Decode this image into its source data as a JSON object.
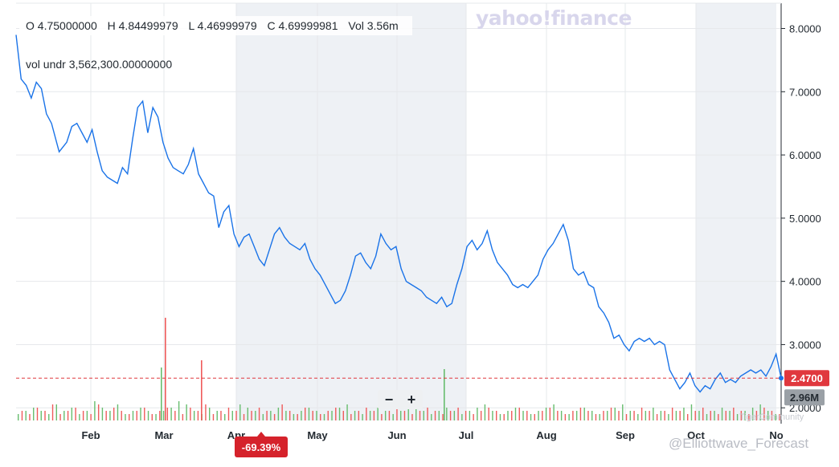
{
  "ohlc": {
    "open": "O 4.75000000",
    "high": "H 4.84499979",
    "low": "L 4.46999979",
    "close": "C 4.69999981",
    "volume": "Vol 3.56m"
  },
  "vol_undr_label": "vol undr  3,562,300.00000000",
  "brand": "yahoo!finance",
  "zoom": {
    "minus": "−",
    "plus": "+"
  },
  "watermarks": {
    "community": "TigerCommunity",
    "handle": "@Elliottwave_Forecast"
  },
  "colors": {
    "line": "#1a73e8",
    "last_price_badge": "#e0383e",
    "volume_badge": "#9aa0a6",
    "change_badge": "#d5222b",
    "volume_up": "#67bd6e",
    "volume_down": "#ef5b5b",
    "shaded_band": "#eef1f5"
  },
  "chart_data": {
    "type": "line",
    "title": "",
    "xlabel": "",
    "ylabel": "",
    "x_tick_labels": [
      "Feb",
      "Mar",
      "Apr",
      "May",
      "Jun",
      "Jul",
      "Aug",
      "Sep",
      "Oct",
      "No"
    ],
    "y_tick_labels": [
      "8.0000",
      "7.0000",
      "6.0000",
      "5.0000",
      "4.0000",
      "3.0000",
      "2.0000"
    ],
    "ylim": [
      1.8,
      8.4
    ],
    "shaded_months": [
      "Apr",
      "May",
      "Jun",
      "Oct"
    ],
    "last_price": "2.4700",
    "last_price_value": 2.47,
    "volume_label": "2.96M",
    "change_label": "-69.39%",
    "grid": true,
    "series": [
      {
        "x": [
          0,
          2,
          4,
          6,
          8,
          10,
          12,
          14,
          17,
          20,
          22,
          24,
          26,
          28,
          30,
          32,
          34,
          36,
          38,
          40,
          42,
          44,
          46,
          48,
          50,
          52,
          54,
          56,
          58,
          60,
          62,
          64,
          66,
          68,
          70,
          72,
          74,
          76,
          78,
          80,
          82,
          84,
          86,
          88,
          90,
          92,
          94,
          96,
          98,
          100,
          102,
          104,
          106,
          108,
          110,
          112,
          114,
          116,
          118,
          120,
          122,
          124,
          126,
          128,
          130,
          132,
          134,
          136,
          138,
          140,
          142,
          144,
          146,
          148,
          150,
          152,
          154,
          156,
          158,
          160,
          162,
          164,
          166,
          168,
          170,
          172,
          174,
          176,
          178,
          180,
          182,
          184,
          186,
          188,
          190,
          192,
          194,
          196,
          198,
          200,
          202,
          204,
          206,
          208,
          210,
          212,
          214,
          216,
          218,
          220,
          222,
          224,
          226,
          228,
          230,
          232,
          234,
          236,
          238,
          240,
          242,
          244,
          246,
          248,
          250,
          252,
          254,
          256,
          258,
          260,
          262,
          264,
          266,
          268,
          270,
          272,
          274,
          276,
          278,
          280,
          282,
          284,
          286,
          288,
          290,
          292,
          294,
          296,
          298,
          300,
          302
        ],
        "values": [
          7.9,
          7.2,
          7.1,
          6.9,
          7.15,
          7.05,
          6.65,
          6.5,
          6.05,
          6.2,
          6.45,
          6.5,
          6.35,
          6.2,
          6.4,
          6.05,
          5.75,
          5.65,
          5.6,
          5.55,
          5.8,
          5.7,
          6.25,
          6.75,
          6.85,
          6.35,
          6.75,
          6.6,
          6.2,
          5.95,
          5.8,
          5.75,
          5.7,
          5.85,
          6.1,
          5.7,
          5.55,
          5.4,
          5.35,
          4.85,
          5.1,
          5.2,
          4.75,
          4.55,
          4.7,
          4.75,
          4.55,
          4.35,
          4.25,
          4.5,
          4.75,
          4.85,
          4.7,
          4.6,
          4.55,
          4.5,
          4.6,
          4.35,
          4.2,
          4.1,
          3.95,
          3.8,
          3.65,
          3.7,
          3.85,
          4.1,
          4.4,
          4.45,
          4.3,
          4.2,
          4.4,
          4.75,
          4.6,
          4.5,
          4.55,
          4.2,
          4.0,
          3.95,
          3.9,
          3.85,
          3.75,
          3.7,
          3.65,
          3.75,
          3.6,
          3.65,
          3.95,
          4.2,
          4.55,
          4.65,
          4.5,
          4.6,
          4.8,
          4.5,
          4.3,
          4.2,
          4.1,
          3.95,
          3.9,
          3.95,
          3.9,
          4.0,
          4.1,
          4.35,
          4.5,
          4.6,
          4.75,
          4.9,
          4.65,
          4.2,
          4.1,
          4.15,
          3.95,
          3.9,
          3.6,
          3.5,
          3.35,
          3.1,
          3.15,
          3.0,
          2.9,
          3.05,
          3.1,
          3.05,
          3.1,
          3.0,
          3.05,
          3.0,
          2.6,
          2.45,
          2.3,
          2.4,
          2.55,
          2.35,
          2.25,
          2.35,
          2.3,
          2.45,
          2.55,
          2.4,
          2.45,
          2.4,
          2.5,
          2.55,
          2.6,
          2.55,
          2.6,
          2.5,
          2.65,
          2.85,
          2.47
        ],
        "volume_up": [
          2,
          3,
          4,
          3,
          2,
          5,
          3,
          4,
          2,
          3,
          6,
          4,
          3,
          5,
          2,
          3,
          4,
          3,
          2,
          3,
          4,
          6,
          5,
          3,
          2,
          4,
          3,
          2,
          3,
          5,
          4,
          3,
          2,
          3,
          4,
          3,
          2,
          3,
          4,
          3,
          2,
          3,
          4,
          5,
          3,
          2,
          3,
          4,
          3,
          2,
          3,
          4,
          5,
          3,
          2,
          3,
          4,
          3,
          2,
          3,
          4,
          5,
          3,
          2,
          3,
          4,
          3,
          2,
          3,
          4,
          5,
          3,
          2,
          3,
          4,
          3,
          2,
          3,
          4,
          5,
          3,
          2,
          3,
          4,
          3,
          2,
          3,
          4,
          5,
          3,
          2,
          3,
          4,
          3,
          2,
          3,
          4,
          5,
          3,
          2
        ],
        "volume_down": [
          3,
          2,
          4,
          3,
          5,
          2,
          3,
          4,
          3,
          2,
          5,
          3,
          4,
          3,
          2,
          3,
          4,
          2,
          3,
          4,
          3,
          2,
          4,
          3,
          5,
          2,
          3,
          4,
          3,
          2,
          3,
          4,
          3,
          2,
          5,
          3,
          2,
          4,
          3,
          2,
          3,
          4,
          3,
          2,
          3,
          4,
          3,
          2,
          3,
          4,
          3,
          2,
          3,
          4,
          3,
          2,
          3,
          4,
          3,
          2,
          3,
          4,
          3,
          2,
          3,
          4,
          3,
          2,
          3,
          4,
          3,
          2,
          3,
          4,
          3,
          2,
          3,
          4,
          3,
          2,
          3,
          4,
          3,
          2,
          3,
          4,
          3,
          2,
          3,
          4,
          3,
          2,
          3,
          4,
          3,
          2,
          3,
          4,
          3,
          2
        ]
      }
    ]
  }
}
